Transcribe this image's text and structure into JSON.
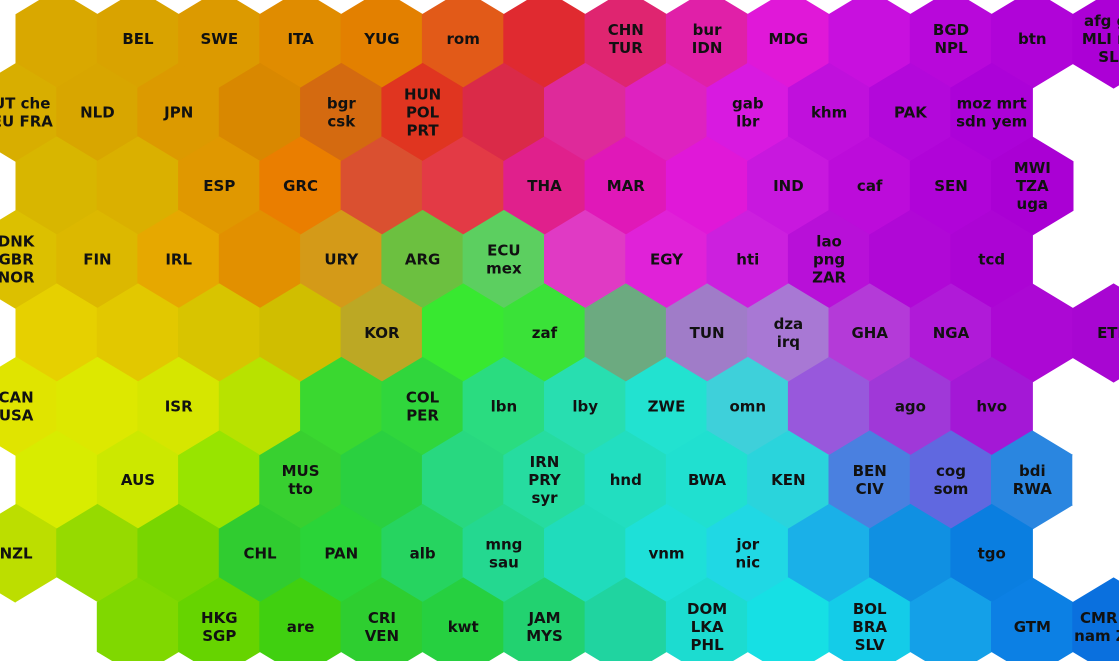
{
  "rows": [
    {
      "cells": [
        {
          "color": "#d9a800",
          "lines": []
        },
        {
          "color": "#d9a300",
          "lines": [
            "BEL"
          ]
        },
        {
          "color": "#dc9a00",
          "lines": [
            "SWE"
          ]
        },
        {
          "color": "#e08c00",
          "lines": [
            "ITA"
          ]
        },
        {
          "color": "#e38000",
          "lines": [
            "YUG"
          ]
        },
        {
          "color": "#e25a18",
          "lines": [
            "rom"
          ]
        },
        {
          "color": "#e02a30",
          "lines": []
        },
        {
          "color": "#df2570",
          "lines": [
            "CHN",
            "TUR"
          ]
        },
        {
          "color": "#e020a8",
          "lines": [
            "bur",
            "IDN"
          ]
        },
        {
          "color": "#e018d8",
          "lines": [
            "MDG"
          ]
        },
        {
          "color": "#c810de",
          "lines": []
        },
        {
          "color": "#b808da",
          "lines": [
            "BGD",
            "NPL"
          ]
        },
        {
          "color": "#b004d8",
          "lines": [
            "btn"
          ]
        },
        {
          "color": "#ac00d6",
          "lines": [
            "afg gin",
            "MLI ner",
            "SLE"
          ]
        }
      ]
    },
    {
      "cells": [
        {
          "color": "#d8ae00",
          "lines": [
            "AUT che",
            "DEU FRA"
          ]
        },
        {
          "color": "#d8a600",
          "lines": [
            "NLD"
          ]
        },
        {
          "color": "#dc9a00",
          "lines": [
            "JPN"
          ]
        },
        {
          "color": "#d98800",
          "lines": []
        },
        {
          "color": "#d46a10",
          "lines": [
            "bgr",
            "csk"
          ]
        },
        {
          "color": "#e03520",
          "lines": [
            "HUN",
            "POL",
            "PRT"
          ]
        },
        {
          "color": "#da2a48",
          "lines": []
        },
        {
          "color": "#de2a9a",
          "lines": []
        },
        {
          "color": "#de22c0",
          "lines": []
        },
        {
          "color": "#d81ae0",
          "lines": [
            "gab",
            "lbr"
          ]
        },
        {
          "color": "#c010dc",
          "lines": [
            "khm"
          ]
        },
        {
          "color": "#b308da",
          "lines": [
            "PAK"
          ]
        },
        {
          "color": "#ac02d8",
          "lines": [
            "moz mrt",
            "sdn yem"
          ]
        }
      ]
    },
    {
      "cells": [
        {
          "color": "#d8b600",
          "lines": []
        },
        {
          "color": "#dab000",
          "lines": []
        },
        {
          "color": "#e09800",
          "lines": [
            "ESP"
          ]
        },
        {
          "color": "#ea7e00",
          "lines": [
            "GRC"
          ]
        },
        {
          "color": "#da5030",
          "lines": []
        },
        {
          "color": "#e33a45",
          "lines": []
        },
        {
          "color": "#e0208c",
          "lines": [
            "THA"
          ]
        },
        {
          "color": "#e018b8",
          "lines": [
            "MAR"
          ]
        },
        {
          "color": "#e018d8",
          "lines": []
        },
        {
          "color": "#c818de",
          "lines": [
            "IND"
          ]
        },
        {
          "color": "#bc0cda",
          "lines": [
            "caf"
          ]
        },
        {
          "color": "#b004d8",
          "lines": [
            "SEN"
          ]
        },
        {
          "color": "#aa00d4",
          "lines": [
            "MWI",
            "TZA",
            "uga"
          ]
        }
      ]
    },
    {
      "cells": [
        {
          "color": "#dcc000",
          "lines": [
            "DNK",
            "GBR",
            "NOR"
          ]
        },
        {
          "color": "#dcb800",
          "lines": [
            "FIN"
          ]
        },
        {
          "color": "#e6a800",
          "lines": [
            "IRL"
          ]
        },
        {
          "color": "#e29000",
          "lines": []
        },
        {
          "color": "#d49a18",
          "lines": [
            "URY"
          ]
        },
        {
          "color": "#6cc040",
          "lines": [
            "ARG"
          ]
        },
        {
          "color": "#5ccf60",
          "lines": [
            "ECU",
            "mex"
          ]
        },
        {
          "color": "#e03ac4",
          "lines": []
        },
        {
          "color": "#e022d8",
          "lines": [
            "EGY"
          ]
        },
        {
          "color": "#cc20de",
          "lines": [
            "hti"
          ]
        },
        {
          "color": "#b810d8",
          "lines": [
            "lao",
            "png",
            "ZAR"
          ]
        },
        {
          "color": "#b008d6",
          "lines": []
        },
        {
          "color": "#ac04d4",
          "lines": [
            "tcd"
          ]
        }
      ]
    },
    {
      "cells": [
        {
          "color": "#e6d000",
          "lines": []
        },
        {
          "color": "#e2c800",
          "lines": []
        },
        {
          "color": "#d8c400",
          "lines": []
        },
        {
          "color": "#d0be00",
          "lines": []
        },
        {
          "color": "#bca824",
          "lines": [
            "KOR"
          ]
        },
        {
          "color": "#38e830",
          "lines": []
        },
        {
          "color": "#3ae238",
          "lines": [
            "zaf"
          ]
        },
        {
          "color": "#6caa80",
          "lines": []
        },
        {
          "color": "#a07cc8",
          "lines": [
            "TUN"
          ]
        },
        {
          "color": "#a878d4",
          "lines": [
            "dza",
            "irq"
          ]
        },
        {
          "color": "#b43ad8",
          "lines": [
            "GHA"
          ]
        },
        {
          "color": "#b01ad8",
          "lines": [
            "NGA"
          ]
        },
        {
          "color": "#ac08d4",
          "lines": []
        },
        {
          "color": "#a806d2",
          "lines": [
            "ETH"
          ]
        }
      ]
    },
    {
      "cells": [
        {
          "color": "#e0e400",
          "lines": [
            "CAN",
            "USA"
          ]
        },
        {
          "color": "#dde800",
          "lines": []
        },
        {
          "color": "#d6e600",
          "lines": [
            "ISR"
          ]
        },
        {
          "color": "#b8e200",
          "lines": []
        },
        {
          "color": "#3ad830",
          "lines": []
        },
        {
          "color": "#30d63c",
          "lines": [
            "COL",
            "PER"
          ]
        },
        {
          "color": "#2adc80",
          "lines": [
            "lbn"
          ]
        },
        {
          "color": "#28deb0",
          "lines": [
            "lby"
          ]
        },
        {
          "color": "#22e2d0",
          "lines": [
            "ZWE"
          ]
        },
        {
          "color": "#3ed0da",
          "lines": [
            "omn"
          ]
        },
        {
          "color": "#9858dc",
          "lines": []
        },
        {
          "color": "#a038d8",
          "lines": [
            "ago"
          ]
        },
        {
          "color": "#a418d6",
          "lines": [
            "hvo"
          ]
        }
      ]
    },
    {
      "cells": [
        {
          "color": "#d8ec00",
          "lines": []
        },
        {
          "color": "#cce800",
          "lines": [
            "AUS"
          ]
        },
        {
          "color": "#98e400",
          "lines": []
        },
        {
          "color": "#38d030",
          "lines": [
            "MUS",
            "tto"
          ]
        },
        {
          "color": "#2ad040",
          "lines": []
        },
        {
          "color": "#28d880",
          "lines": []
        },
        {
          "color": "#26dca0",
          "lines": [
            "IRN",
            "PRY",
            "syr"
          ]
        },
        {
          "color": "#22dec0",
          "lines": [
            "hnd"
          ]
        },
        {
          "color": "#20e0d0",
          "lines": [
            "BWA"
          ]
        },
        {
          "color": "#2ad4dc",
          "lines": [
            "KEN"
          ]
        },
        {
          "color": "#4a80e0",
          "lines": [
            "BEN",
            "CIV"
          ]
        },
        {
          "color": "#6068e0",
          "lines": [
            "cog",
            "som"
          ]
        },
        {
          "color": "#2a86e0",
          "lines": [
            "bdi",
            "RWA"
          ]
        },
        {
          "color": "#ffffff",
          "lines": []
        }
      ]
    },
    {
      "cells": [
        {
          "color": "#bcde00",
          "lines": [
            "NZL"
          ]
        },
        {
          "color": "#96da00",
          "lines": []
        },
        {
          "color": "#78d600",
          "lines": []
        },
        {
          "color": "#30cc30",
          "lines": [
            "CHL"
          ]
        },
        {
          "color": "#2ad438",
          "lines": [
            "PAN"
          ]
        },
        {
          "color": "#26d460",
          "lines": [
            "alb"
          ]
        },
        {
          "color": "#24d890",
          "lines": [
            "mng",
            "sau"
          ]
        },
        {
          "color": "#20dcbc",
          "lines": []
        },
        {
          "color": "#1ee0d8",
          "lines": [
            "vnm"
          ]
        },
        {
          "color": "#20d8e4",
          "lines": [
            "jor",
            "nic"
          ]
        },
        {
          "color": "#1ab0e8",
          "lines": []
        },
        {
          "color": "#1090e2",
          "lines": []
        },
        {
          "color": "#0a7ee0",
          "lines": [
            "tgo"
          ]
        }
      ]
    },
    {
      "cells": [
        {
          "color": "#ffffff",
          "lines": []
        },
        {
          "color": "#80d800",
          "lines": []
        },
        {
          "color": "#66d400",
          "lines": [
            "HKG",
            "SGP"
          ]
        },
        {
          "color": "#40d010",
          "lines": [
            "are"
          ]
        },
        {
          "color": "#2ece30",
          "lines": [
            "CRI",
            "VEN"
          ]
        },
        {
          "color": "#26d040",
          "lines": [
            "kwt"
          ]
        },
        {
          "color": "#22d270",
          "lines": [
            "JAM",
            "MYS"
          ]
        },
        {
          "color": "#20d4a0",
          "lines": []
        },
        {
          "color": "#1cdcd0",
          "lines": [
            "DOM",
            "LKA",
            "PHL"
          ]
        },
        {
          "color": "#16e0e4",
          "lines": []
        },
        {
          "color": "#14cce8",
          "lines": [
            "BOL",
            "BRA",
            "SLV"
          ]
        },
        {
          "color": "#14a0e8",
          "lines": []
        },
        {
          "color": "#0c80e4",
          "lines": [
            "GTM"
          ]
        },
        {
          "color": "#0a70de",
          "lines": [
            "CMR lso",
            "nam ZMB"
          ]
        }
      ]
    }
  ]
}
